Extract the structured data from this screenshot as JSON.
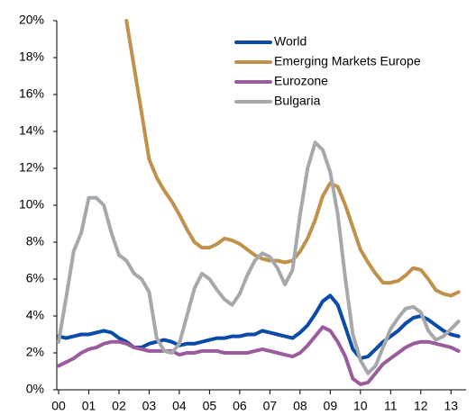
{
  "chart_data": {
    "type": "line",
    "x": [
      0,
      0.25,
      0.5,
      0.75,
      1,
      1.25,
      1.5,
      1.75,
      2,
      2.25,
      2.5,
      2.75,
      3,
      3.25,
      3.5,
      3.75,
      4,
      4.25,
      4.5,
      4.75,
      5,
      5.25,
      5.5,
      5.75,
      6,
      6.25,
      6.5,
      6.75,
      7,
      7.25,
      7.5,
      7.75,
      8,
      8.25,
      8.5,
      8.75,
      9,
      9.25,
      9.5,
      9.75,
      10,
      10.25,
      10.5,
      10.75,
      11,
      11.25,
      11.5,
      11.75,
      12,
      12.25,
      12.5,
      12.75,
      13,
      13.25
    ],
    "series": [
      {
        "name": "World",
        "color": "#0a4aa8",
        "values": [
          2.9,
          2.8,
          2.9,
          3.0,
          3.0,
          3.1,
          3.2,
          3.1,
          2.8,
          2.6,
          2.3,
          2.3,
          2.5,
          2.6,
          2.7,
          2.6,
          2.4,
          2.5,
          2.5,
          2.6,
          2.7,
          2.8,
          2.8,
          2.9,
          2.9,
          3.0,
          3.0,
          3.2,
          3.1,
          3.0,
          2.9,
          2.8,
          3.1,
          3.5,
          4.1,
          4.8,
          5.1,
          4.6,
          3.4,
          2.2,
          1.7,
          1.8,
          2.2,
          2.6,
          2.9,
          3.2,
          3.6,
          3.9,
          4.0,
          3.8,
          3.5,
          3.2,
          3.0,
          2.9
        ]
      },
      {
        "name": "Emerging Markets Europe",
        "color": "#c0914a",
        "values": [
          null,
          null,
          null,
          null,
          null,
          null,
          null,
          null,
          null,
          20.0,
          17.5,
          15.0,
          12.5,
          11.5,
          10.8,
          10.2,
          9.5,
          8.7,
          8.0,
          7.7,
          7.7,
          7.9,
          8.2,
          8.1,
          7.9,
          7.6,
          7.3,
          7.1,
          7.0,
          7.0,
          6.9,
          7.0,
          7.5,
          8.2,
          9.2,
          10.5,
          11.2,
          11.0,
          10.0,
          8.8,
          7.6,
          6.9,
          6.3,
          5.8,
          5.8,
          5.9,
          6.2,
          6.6,
          6.5,
          6.0,
          5.4,
          5.2,
          5.1,
          5.3
        ]
      },
      {
        "name": "Eurozone",
        "color": "#9b5c9e",
        "values": [
          1.3,
          1.5,
          1.7,
          2.0,
          2.2,
          2.3,
          2.5,
          2.6,
          2.6,
          2.5,
          2.3,
          2.2,
          2.1,
          2.1,
          2.1,
          2.1,
          1.9,
          2.0,
          2.0,
          2.1,
          2.1,
          2.1,
          2.0,
          2.0,
          2.0,
          2.0,
          2.1,
          2.2,
          2.1,
          2.0,
          1.9,
          1.8,
          2.0,
          2.4,
          2.9,
          3.4,
          3.2,
          2.6,
          1.8,
          0.6,
          0.3,
          0.4,
          0.9,
          1.4,
          1.7,
          2.0,
          2.3,
          2.5,
          2.6,
          2.6,
          2.5,
          2.4,
          2.3,
          2.1
        ]
      },
      {
        "name": "Bulgaria",
        "color": "#a5a9ac",
        "values": [
          2.6,
          5.0,
          7.5,
          8.5,
          10.4,
          10.4,
          10.0,
          8.5,
          7.3,
          7.0,
          6.3,
          6.0,
          5.3,
          2.8,
          2.1,
          2.0,
          2.5,
          4.0,
          5.5,
          6.3,
          6.0,
          5.4,
          4.9,
          4.6,
          5.2,
          6.2,
          7.0,
          7.4,
          7.2,
          6.6,
          5.7,
          6.5,
          9.5,
          12.0,
          13.4,
          13.0,
          11.8,
          9.5,
          6.0,
          3.0,
          1.6,
          0.9,
          1.3,
          2.3,
          3.3,
          3.9,
          4.4,
          4.5,
          4.2,
          3.2,
          2.7,
          2.9,
          3.3,
          3.7
        ]
      }
    ],
    "xlim": [
      0,
      13.5
    ],
    "xticks": [
      {
        "value": 0,
        "label": "00"
      },
      {
        "value": 1,
        "label": "01"
      },
      {
        "value": 2,
        "label": "02"
      },
      {
        "value": 3,
        "label": "03"
      },
      {
        "value": 4,
        "label": "04"
      },
      {
        "value": 5,
        "label": "05"
      },
      {
        "value": 6,
        "label": "06"
      },
      {
        "value": 7,
        "label": "07"
      },
      {
        "value": 8,
        "label": "08"
      },
      {
        "value": 9,
        "label": "09"
      },
      {
        "value": 10,
        "label": "10"
      },
      {
        "value": 11,
        "label": "11"
      },
      {
        "value": 12,
        "label": "12"
      },
      {
        "value": 13,
        "label": "13"
      }
    ],
    "ylim": [
      0,
      20
    ],
    "yticks": [
      {
        "value": 0,
        "label": "0%"
      },
      {
        "value": 2,
        "label": "2%"
      },
      {
        "value": 4,
        "label": "4%"
      },
      {
        "value": 6,
        "label": "6%"
      },
      {
        "value": 8,
        "label": "8%"
      },
      {
        "value": 10,
        "label": "10%"
      },
      {
        "value": 12,
        "label": "12%"
      },
      {
        "value": 14,
        "label": "14%"
      },
      {
        "value": 16,
        "label": "16%"
      },
      {
        "value": 18,
        "label": "18%"
      },
      {
        "value": 20,
        "label": "20%"
      }
    ],
    "legend": "top-right"
  }
}
